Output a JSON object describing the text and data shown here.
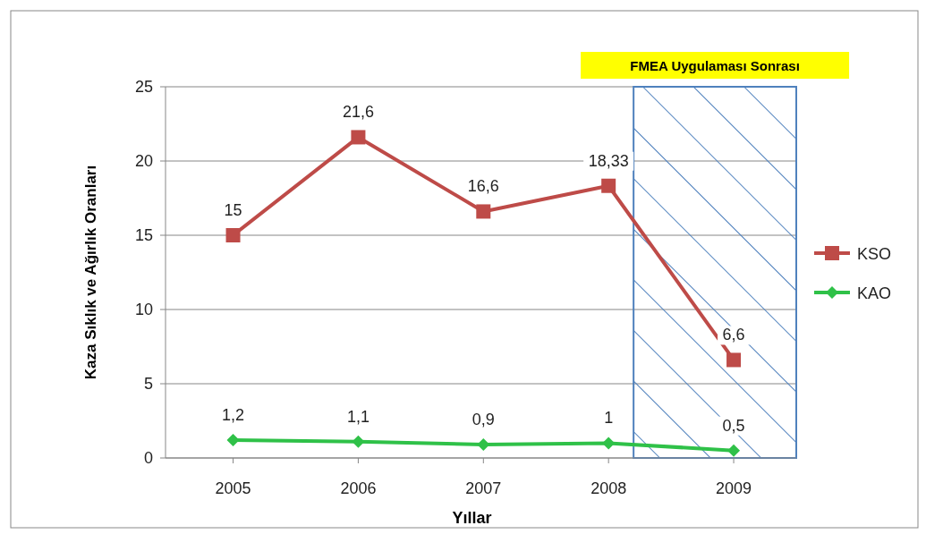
{
  "chart_data": {
    "type": "line",
    "xlabel": "Yıllar",
    "ylabel": "Kaza Sıklık ve Ağırlık Oranları",
    "x": [
      2005,
      2006,
      2007,
      2008,
      2009
    ],
    "xlim": [
      2004.46,
      2009.5
    ],
    "xticks": [
      2005,
      2006,
      2007,
      2008,
      2009
    ],
    "ylim": [
      0,
      25
    ],
    "yticks": [
      0,
      5,
      10,
      15,
      20,
      25
    ],
    "grid": "y",
    "legend": "right",
    "series": [
      {
        "name": "KSO",
        "color": "#be4b48",
        "values": [
          15,
          21.6,
          16.6,
          18.33,
          6.6
        ],
        "value_labels": [
          "15",
          "21,6",
          "16,6",
          "18,33",
          "6,6"
        ],
        "marker": "square"
      },
      {
        "name": "KAO",
        "color": "#2fc148",
        "values": [
          1.2,
          1.1,
          0.9,
          1,
          0.5
        ],
        "value_labels": [
          "1,2",
          "1,1",
          "0,9",
          "1",
          "0,5"
        ],
        "marker": "diamond"
      }
    ],
    "bands": [
      {
        "axis": "x",
        "from": 2008.2,
        "to": 2009.5,
        "label": "FMEA Uygulaması Sonrası",
        "color": "#4f81bd"
      }
    ]
  }
}
